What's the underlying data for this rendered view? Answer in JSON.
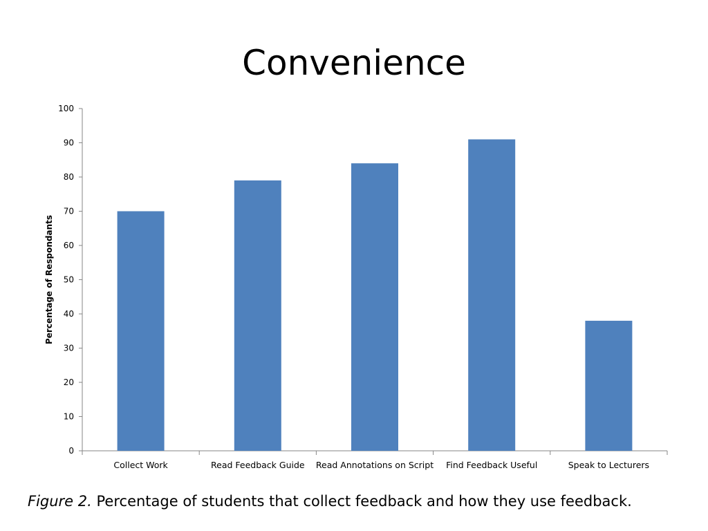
{
  "slide": {
    "title": "Convenience"
  },
  "caption": {
    "label": "Figure 2.",
    "text": "Percentage of students that collect feedback and how they use feedback."
  },
  "chart_data": {
    "type": "bar",
    "categories": [
      "Collect Work",
      "Read Feedback Guide",
      "Read Annotations on Script",
      "Find Feedback Useful",
      "Speak to Lecturers"
    ],
    "values": [
      70,
      79,
      84,
      91,
      38
    ],
    "title": "",
    "xlabel": "",
    "ylabel": "Percentage of Respondants",
    "ylim": [
      0,
      100
    ],
    "yticks": [
      0,
      10,
      20,
      30,
      40,
      50,
      60,
      70,
      80,
      90,
      100
    ],
    "grid": false,
    "legend": "none",
    "bar_color": "#4f81bd",
    "axis_color": "#868686"
  }
}
